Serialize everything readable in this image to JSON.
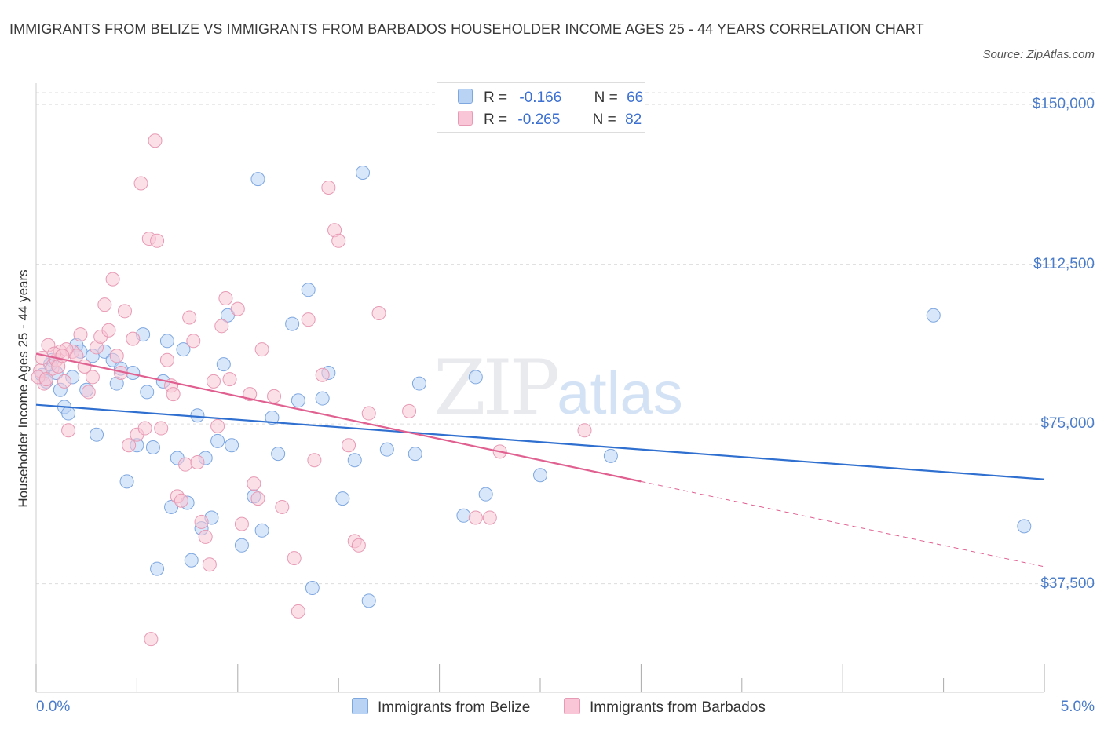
{
  "header": {
    "title": "IMMIGRANTS FROM BELIZE VS IMMIGRANTS FROM BARBADOS HOUSEHOLDER INCOME AGES 25 - 44 YEARS CORRELATION CHART",
    "source": "Source: ZipAtlas.com"
  },
  "watermark": {
    "zip": "ZIP",
    "atlas": "atlas"
  },
  "legend": {
    "belize": {
      "r_label": "R =",
      "r_value": "-0.166",
      "n_label": "N =",
      "n_value": "66"
    },
    "barbados": {
      "r_label": "R =",
      "r_value": "-0.265",
      "n_label": "N =",
      "n_value": "82"
    }
  },
  "colors": {
    "belize_fill": "#b9d3f5",
    "belize_stroke": "#7ea7e0",
    "belize_line": "#2f6fcf",
    "barbados_fill": "#f8c6d6",
    "barbados_stroke": "#e79ab4",
    "barbados_line": "#e06090",
    "tick_text": "#4a7cc9",
    "grid": "#dddddd"
  },
  "chart_data": {
    "type": "scatter",
    "title": "IMMIGRANTS FROM BELIZE VS IMMIGRANTS FROM BARBADOS HOUSEHOLDER INCOME AGES 25 - 44 YEARS CORRELATION CHART",
    "xlabel": "",
    "ylabel": "Householder Income Ages 25 - 44 years",
    "xlim": [
      0,
      5
    ],
    "ylim": [
      12000,
      155000
    ],
    "x_unit": "%",
    "x_tick_labels": [
      "0.0%",
      "5.0%"
    ],
    "y_ticks": [
      37500,
      75000,
      112500,
      150000
    ],
    "y_tick_labels": [
      "$37,500",
      "$75,000",
      "$112,500",
      "$150,000"
    ],
    "grid": true,
    "legend_position": "top-center",
    "series": [
      {
        "name": "Immigrants from Belize",
        "color": "#b9d3f5",
        "trend": {
          "x": [
            0,
            5
          ],
          "y": [
            79500,
            62000
          ]
        },
        "points": [
          [
            0.03,
            86500
          ],
          [
            0.05,
            85000
          ],
          [
            0.08,
            90000
          ],
          [
            0.1,
            87000
          ],
          [
            0.12,
            83000
          ],
          [
            0.14,
            79000
          ],
          [
            0.16,
            77500
          ],
          [
            0.18,
            86000
          ],
          [
            0.2,
            93500
          ],
          [
            0.22,
            92000
          ],
          [
            0.25,
            83000
          ],
          [
            0.28,
            91000
          ],
          [
            0.3,
            72500
          ],
          [
            0.34,
            92000
          ],
          [
            0.38,
            90000
          ],
          [
            0.4,
            84500
          ],
          [
            0.42,
            88000
          ],
          [
            0.45,
            61500
          ],
          [
            0.48,
            87000
          ],
          [
            0.5,
            70000
          ],
          [
            0.53,
            96000
          ],
          [
            0.55,
            82500
          ],
          [
            0.58,
            69500
          ],
          [
            0.6,
            41000
          ],
          [
            0.63,
            85000
          ],
          [
            0.65,
            94500
          ],
          [
            0.67,
            55500
          ],
          [
            0.7,
            67000
          ],
          [
            0.73,
            92500
          ],
          [
            0.75,
            56500
          ],
          [
            0.77,
            43000
          ],
          [
            0.8,
            77000
          ],
          [
            0.82,
            50500
          ],
          [
            0.84,
            67000
          ],
          [
            0.87,
            53000
          ],
          [
            0.9,
            71000
          ],
          [
            0.93,
            89000
          ],
          [
            0.95,
            100500
          ],
          [
            0.97,
            70000
          ],
          [
            1.02,
            46500
          ],
          [
            1.08,
            58000
          ],
          [
            1.1,
            132500
          ],
          [
            1.12,
            50000
          ],
          [
            1.17,
            76500
          ],
          [
            1.2,
            68000
          ],
          [
            1.27,
            98500
          ],
          [
            1.3,
            80500
          ],
          [
            1.35,
            106500
          ],
          [
            1.37,
            36500
          ],
          [
            1.42,
            81000
          ],
          [
            1.45,
            87000
          ],
          [
            1.52,
            57500
          ],
          [
            1.58,
            66500
          ],
          [
            1.62,
            134000
          ],
          [
            1.65,
            33500
          ],
          [
            1.74,
            69000
          ],
          [
            1.88,
            68000
          ],
          [
            1.9,
            84500
          ],
          [
            2.12,
            53500
          ],
          [
            2.18,
            86000
          ],
          [
            2.23,
            58500
          ],
          [
            2.5,
            63000
          ],
          [
            2.85,
            67500
          ],
          [
            4.45,
            100500
          ],
          [
            4.9,
            51000
          ],
          [
            0.07,
            89000
          ]
        ]
      },
      {
        "name": "Immigrants from Barbados",
        "color": "#f8c6d6",
        "trend": {
          "x": [
            0,
            3
          ],
          "y": [
            91500,
            61500
          ]
        },
        "trend_extension": {
          "x": [
            3,
            5
          ],
          "y": [
            61500,
            41500
          ]
        },
        "points": [
          [
            0.02,
            87500
          ],
          [
            0.04,
            84500
          ],
          [
            0.06,
            93500
          ],
          [
            0.08,
            88000
          ],
          [
            0.1,
            90000
          ],
          [
            0.12,
            92000
          ],
          [
            0.14,
            85000
          ],
          [
            0.16,
            73500
          ],
          [
            0.18,
            92000
          ],
          [
            0.2,
            91000
          ],
          [
            0.22,
            96000
          ],
          [
            0.24,
            88500
          ],
          [
            0.26,
            82500
          ],
          [
            0.28,
            86000
          ],
          [
            0.3,
            93000
          ],
          [
            0.32,
            95500
          ],
          [
            0.34,
            103000
          ],
          [
            0.36,
            97000
          ],
          [
            0.38,
            109000
          ],
          [
            0.4,
            91000
          ],
          [
            0.42,
            87000
          ],
          [
            0.44,
            101500
          ],
          [
            0.46,
            70000
          ],
          [
            0.48,
            95000
          ],
          [
            0.5,
            72500
          ],
          [
            0.52,
            131500
          ],
          [
            0.54,
            74000
          ],
          [
            0.56,
            118500
          ],
          [
            0.57,
            24500
          ],
          [
            0.59,
            141500
          ],
          [
            0.6,
            118000
          ],
          [
            0.62,
            74000
          ],
          [
            0.65,
            90000
          ],
          [
            0.67,
            84000
          ],
          [
            0.68,
            82000
          ],
          [
            0.7,
            58000
          ],
          [
            0.72,
            57000
          ],
          [
            0.74,
            65500
          ],
          [
            0.76,
            100000
          ],
          [
            0.78,
            94500
          ],
          [
            0.8,
            66000
          ],
          [
            0.82,
            52000
          ],
          [
            0.84,
            48500
          ],
          [
            0.86,
            42000
          ],
          [
            0.88,
            85000
          ],
          [
            0.9,
            74500
          ],
          [
            0.92,
            98000
          ],
          [
            0.94,
            104500
          ],
          [
            0.96,
            85500
          ],
          [
            1.0,
            102000
          ],
          [
            1.02,
            51500
          ],
          [
            1.06,
            82000
          ],
          [
            1.08,
            61000
          ],
          [
            1.1,
            57500
          ],
          [
            1.12,
            92500
          ],
          [
            1.18,
            81500
          ],
          [
            1.22,
            55500
          ],
          [
            1.28,
            43500
          ],
          [
            1.3,
            31000
          ],
          [
            1.35,
            99500
          ],
          [
            1.38,
            66500
          ],
          [
            1.42,
            86500
          ],
          [
            1.45,
            130500
          ],
          [
            1.48,
            120500
          ],
          [
            1.5,
            118000
          ],
          [
            1.55,
            70000
          ],
          [
            1.58,
            47500
          ],
          [
            1.6,
            46500
          ],
          [
            1.65,
            77500
          ],
          [
            1.7,
            101000
          ],
          [
            1.85,
            78000
          ],
          [
            2.18,
            53000
          ],
          [
            2.25,
            53000
          ],
          [
            2.3,
            68500
          ],
          [
            2.72,
            73500
          ],
          [
            0.09,
            91500
          ],
          [
            0.15,
            92500
          ],
          [
            0.01,
            86000
          ],
          [
            0.03,
            90500
          ],
          [
            0.05,
            85500
          ],
          [
            0.11,
            88500
          ],
          [
            0.13,
            91000
          ]
        ]
      }
    ]
  }
}
